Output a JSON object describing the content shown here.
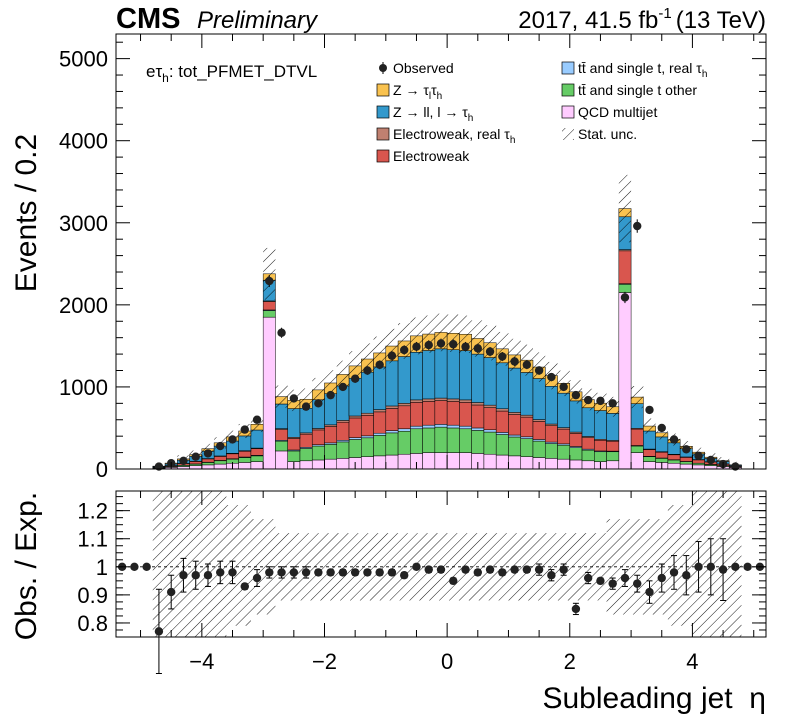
{
  "header": {
    "cms": "CMS",
    "preliminary": "Preliminary",
    "lumi_year": "2017, 41.5 fb",
    "lumi_exp": "-1",
    "lumi_energy": "(13 TeV)"
  },
  "channel": {
    "prefix": "eτ",
    "sub": "h",
    "suffix": ": tot_PFMET_DTVL"
  },
  "legend": {
    "observed": "Observed",
    "ztautau_main": "Z → τ",
    "ztautau_sub1": "l",
    "ztautau_mid": "τ",
    "ztautau_sub2": "h",
    "zll_main": "Z → ll, l → τ",
    "zll_sub": "h",
    "ewk_real_main": "Electroweak, real τ",
    "ewk_real_sub": "h",
    "ewk": "Electroweak",
    "tt_real_main": "tt̄ and single t, real τ",
    "tt_real_sub": "h",
    "tt_other": "tt̄ and single t other",
    "qcd": "QCD multijet",
    "stat": "Stat. unc."
  },
  "colors": {
    "ztautau": "#f9c24f",
    "zll": "#3399cc",
    "ewk_real": "#c08070",
    "ewk": "#d9564e",
    "tt_real": "#99ccff",
    "tt_other": "#66cc66",
    "qcd": "#ffccff"
  },
  "chart_data": [
    {
      "type": "bar",
      "stacked": true,
      "ylabel": "Events / 0.2",
      "ylim": [
        0,
        5300
      ],
      "xlim": [
        -5.4,
        5.2
      ],
      "yticks": [
        "0",
        "1000",
        "2000",
        "3000",
        "4000",
        "5000"
      ],
      "bin_edges": [
        -4.8,
        -4.6,
        -4.4,
        -4.2,
        -4.0,
        -3.8,
        -3.6,
        -3.4,
        -3.2,
        -3.0,
        -2.8,
        -2.6,
        -2.4,
        -2.2,
        -2.0,
        -1.8,
        -1.6,
        -1.4,
        -1.2,
        -1.0,
        -0.8,
        -0.6,
        -0.4,
        -0.2,
        0.0,
        0.2,
        0.4,
        0.6,
        0.8,
        1.0,
        1.2,
        1.4,
        1.6,
        1.8,
        2.0,
        2.2,
        2.4,
        2.6,
        2.8,
        3.0,
        3.2,
        3.4,
        3.6,
        3.8,
        4.0,
        4.2,
        4.4,
        4.6,
        4.8
      ],
      "series": [
        {
          "name": "QCD multijet",
          "key": "qcd",
          "values": [
            10,
            20,
            30,
            40,
            50,
            60,
            70,
            80,
            90,
            1850,
            220,
            90,
            100,
            110,
            120,
            130,
            140,
            150,
            160,
            170,
            180,
            190,
            200,
            200,
            200,
            200,
            190,
            180,
            170,
            160,
            150,
            140,
            130,
            120,
            110,
            100,
            90,
            100,
            2150,
            200,
            90,
            80,
            70,
            60,
            50,
            40,
            30,
            20
          ]
        },
        {
          "name": "tt̄ and single t other",
          "key": "tt_other",
          "values": [
            5,
            10,
            15,
            20,
            30,
            40,
            50,
            60,
            70,
            80,
            120,
            130,
            150,
            170,
            180,
            200,
            220,
            230,
            250,
            270,
            280,
            300,
            300,
            310,
            300,
            290,
            280,
            270,
            250,
            230,
            220,
            200,
            180,
            170,
            150,
            130,
            120,
            110,
            100,
            80,
            60,
            50,
            40,
            30,
            20,
            15,
            10,
            5
          ]
        },
        {
          "name": "tt̄ and single t, real τh",
          "key": "tt_real",
          "values": [
            0,
            1,
            1,
            2,
            3,
            4,
            5,
            6,
            7,
            8,
            10,
            12,
            14,
            16,
            18,
            20,
            22,
            24,
            26,
            28,
            30,
            32,
            34,
            34,
            34,
            32,
            30,
            28,
            26,
            24,
            22,
            20,
            18,
            16,
            14,
            12,
            10,
            8,
            8,
            6,
            5,
            4,
            3,
            2,
            1,
            1,
            0,
            0
          ]
        },
        {
          "name": "Electroweak",
          "key": "ewk",
          "values": [
            5,
            10,
            20,
            30,
            40,
            50,
            60,
            70,
            80,
            100,
            130,
            140,
            160,
            180,
            200,
            220,
            240,
            250,
            260,
            270,
            280,
            290,
            290,
            290,
            290,
            290,
            280,
            270,
            260,
            250,
            240,
            220,
            200,
            180,
            160,
            140,
            130,
            120,
            400,
            200,
            80,
            70,
            60,
            50,
            40,
            30,
            20,
            10
          ]
        },
        {
          "name": "Electroweak, real τh",
          "key": "ewk_real",
          "values": [
            0,
            1,
            2,
            3,
            4,
            5,
            6,
            7,
            8,
            10,
            12,
            14,
            16,
            18,
            20,
            22,
            24,
            26,
            28,
            30,
            30,
            30,
            30,
            30,
            30,
            30,
            30,
            30,
            28,
            26,
            24,
            22,
            20,
            18,
            16,
            14,
            12,
            10,
            15,
            10,
            8,
            7,
            6,
            5,
            4,
            3,
            2,
            1
          ]
        },
        {
          "name": "Z → ll, l → τh",
          "key": "zll",
          "values": [
            10,
            20,
            40,
            60,
            90,
            120,
            150,
            180,
            220,
            250,
            300,
            350,
            300,
            350,
            380,
            420,
            460,
            500,
            520,
            550,
            570,
            580,
            590,
            600,
            600,
            600,
            590,
            580,
            560,
            540,
            520,
            500,
            460,
            420,
            380,
            350,
            350,
            330,
            400,
            300,
            220,
            180,
            140,
            100,
            70,
            40,
            30,
            10
          ]
        },
        {
          "name": "Z → τlτh",
          "key": "ztautau",
          "values": [
            5,
            10,
            15,
            20,
            30,
            40,
            50,
            60,
            70,
            80,
            90,
            100,
            110,
            120,
            130,
            140,
            150,
            160,
            170,
            180,
            190,
            200,
            200,
            200,
            200,
            200,
            190,
            180,
            170,
            160,
            150,
            140,
            130,
            120,
            110,
            100,
            90,
            80,
            100,
            80,
            60,
            50,
            40,
            30,
            20,
            15,
            10,
            5
          ]
        }
      ],
      "observed": [
        30,
        70,
        100,
        150,
        190,
        280,
        360,
        480,
        600,
        2290,
        1660,
        860,
        760,
        800,
        900,
        1000,
        1100,
        1200,
        1270,
        1380,
        1450,
        1490,
        1510,
        1530,
        1520,
        1490,
        1470,
        1430,
        1370,
        1310,
        1270,
        1200,
        1120,
        1000,
        900,
        840,
        830,
        800,
        2090,
        2960,
        720,
        500,
        360,
        240,
        160,
        110,
        60,
        30
      ]
    },
    {
      "type": "scatter",
      "ylabel": "Obs. / Exp.",
      "xlabel": "Subleading jet  η",
      "xlim": [
        -5.4,
        5.2
      ],
      "ylim": [
        0.75,
        1.27
      ],
      "yticks": [
        "0.8",
        "0.9",
        "1",
        "1.1",
        "1.2"
      ],
      "xticks": [
        "−4",
        "−2",
        "0",
        "2",
        "4"
      ],
      "x": [
        -5.3,
        -5.1,
        -4.9,
        -4.7,
        -4.5,
        -4.3,
        -4.1,
        -3.9,
        -3.7,
        -3.5,
        -3.3,
        -3.1,
        -2.9,
        -2.7,
        -2.5,
        -2.3,
        -2.1,
        -1.9,
        -1.7,
        -1.5,
        -1.3,
        -1.1,
        -0.9,
        -0.7,
        -0.5,
        -0.3,
        -0.1,
        0.1,
        0.3,
        0.5,
        0.7,
        0.9,
        1.1,
        1.3,
        1.5,
        1.7,
        1.9,
        2.1,
        2.3,
        2.5,
        2.7,
        2.9,
        3.1,
        3.3,
        3.5,
        3.7,
        3.9,
        4.1,
        4.3,
        4.5,
        4.7,
        4.9,
        5.1
      ],
      "values": [
        1.0,
        1.0,
        1.0,
        0.77,
        0.91,
        0.97,
        0.97,
        0.97,
        0.98,
        0.98,
        0.93,
        0.96,
        0.98,
        0.98,
        0.98,
        0.98,
        0.98,
        0.98,
        0.98,
        0.98,
        0.98,
        0.98,
        0.98,
        0.97,
        1.0,
        0.99,
        0.99,
        0.95,
        0.99,
        0.98,
        0.99,
        0.98,
        0.99,
        0.99,
        0.99,
        0.97,
        0.99,
        0.85,
        0.96,
        0.95,
        0.94,
        0.96,
        0.94,
        0.91,
        0.96,
        0.98,
        0.97,
        1.0,
        1.0,
        0.99,
        1.0,
        1.0,
        1.0
      ],
      "errors": [
        0,
        0,
        0,
        0.15,
        0.06,
        0.06,
        0.05,
        0.04,
        0.04,
        0.04,
        0.01,
        0.03,
        0.02,
        0.02,
        0.02,
        0.02,
        0.01,
        0.01,
        0.01,
        0.01,
        0.01,
        0.01,
        0.01,
        0.01,
        0.01,
        0.01,
        0.01,
        0.01,
        0.01,
        0.01,
        0.01,
        0.01,
        0.01,
        0.01,
        0.02,
        0.02,
        0.02,
        0.02,
        0.02,
        0.01,
        0.02,
        0.03,
        0.03,
        0.04,
        0.05,
        0.06,
        0.07,
        0.09,
        0.1,
        0.11,
        0,
        0,
        0
      ],
      "reference": 1
    }
  ]
}
